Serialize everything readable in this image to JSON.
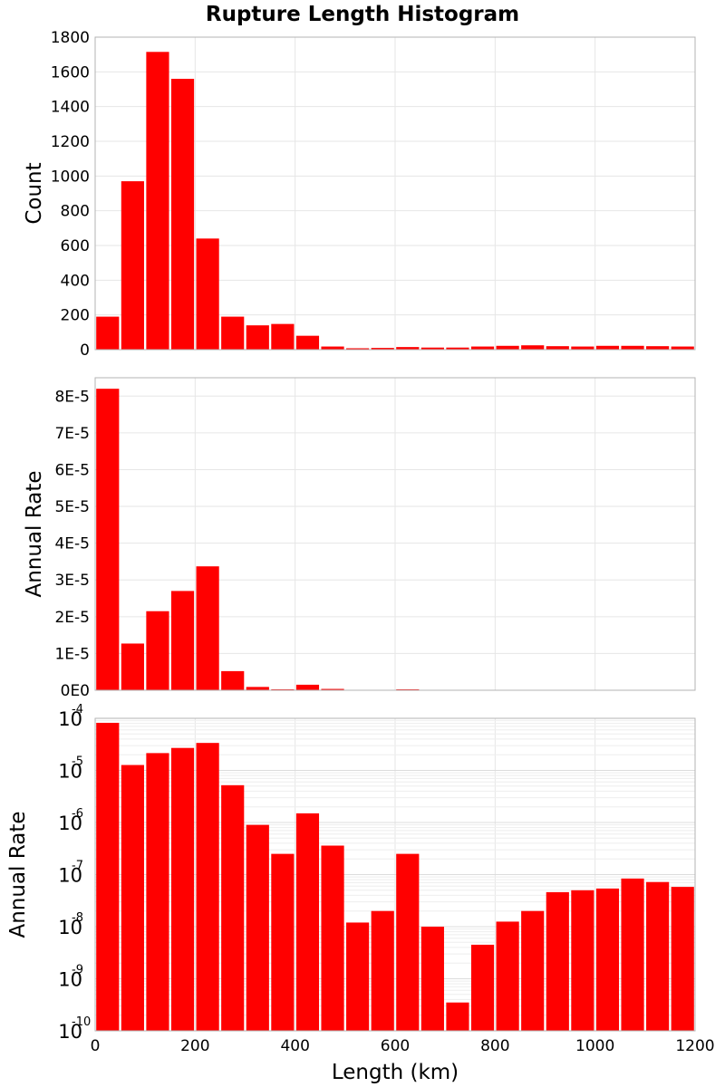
{
  "chart_data": {
    "type": "bar",
    "title": "Rupture Length Histogram",
    "xlabel": "Length (km)",
    "xlim": [
      0,
      1200
    ],
    "x_ticks": [
      "0",
      "200",
      "400",
      "600",
      "800",
      "1000",
      "1200"
    ],
    "x_tick_values": [
      0,
      200,
      400,
      600,
      800,
      1000,
      1200
    ],
    "bin_width": 50,
    "bin_starts": [
      0,
      50,
      100,
      150,
      200,
      250,
      300,
      350,
      400,
      450,
      500,
      550,
      600,
      650,
      700,
      750,
      800,
      850,
      900,
      950,
      1000,
      1050,
      1100,
      1150
    ],
    "bar_color": "#ff0000",
    "grid": true,
    "panels": [
      {
        "ylabel": "Count",
        "scale": "linear",
        "ylim": [
          0,
          1800
        ],
        "y_ticks": [
          "0",
          "200",
          "400",
          "600",
          "800",
          "1000",
          "1200",
          "1400",
          "1600",
          "1800"
        ],
        "y_tick_values": [
          0,
          200,
          400,
          600,
          800,
          1000,
          1200,
          1400,
          1600,
          1800
        ],
        "values": [
          190,
          970,
          1715,
          1560,
          640,
          190,
          140,
          148,
          80,
          18,
          8,
          10,
          15,
          12,
          12,
          18,
          22,
          25,
          20,
          18,
          22,
          22,
          20,
          18
        ]
      },
      {
        "ylabel": "Annual Rate",
        "scale": "linear",
        "ylim": [
          0,
          8.5e-05
        ],
        "y_ticks": [
          "0E0",
          "1E-5",
          "2E-5",
          "3E-5",
          "4E-5",
          "5E-5",
          "6E-5",
          "7E-5",
          "8E-5"
        ],
        "y_tick_values": [
          0,
          1e-05,
          2e-05,
          3e-05,
          4e-05,
          5e-05,
          6e-05,
          7e-05,
          8e-05
        ],
        "values": [
          8.2e-05,
          1.27e-05,
          2.15e-05,
          2.7e-05,
          3.37e-05,
          5.2e-06,
          9e-07,
          2.5e-07,
          1.5e-06,
          3.6e-07,
          1.2e-08,
          2e-08,
          2.5e-07,
          1e-08,
          3.5e-10,
          4.5e-09,
          1.25e-08,
          2e-08,
          4.6e-08,
          5e-08,
          5.4e-08,
          8.4e-08,
          7.2e-08,
          5.8e-08
        ]
      },
      {
        "ylabel": "Annual Rate",
        "scale": "log",
        "ylim": [
          1e-10,
          0.0001
        ],
        "y_tick_exponents": [
          "-4",
          "-5",
          "-6",
          "-7",
          "-8",
          "-9",
          "-10"
        ],
        "y_tick_base": "10",
        "values": [
          8.2e-05,
          1.27e-05,
          2.15e-05,
          2.7e-05,
          3.37e-05,
          5.2e-06,
          9e-07,
          2.5e-07,
          1.5e-06,
          3.6e-07,
          1.2e-08,
          2e-08,
          2.5e-07,
          1e-08,
          3.5e-10,
          4.5e-09,
          1.25e-08,
          2e-08,
          4.6e-08,
          5e-08,
          5.4e-08,
          8.4e-08,
          7.2e-08,
          5.8e-08
        ]
      }
    ]
  }
}
